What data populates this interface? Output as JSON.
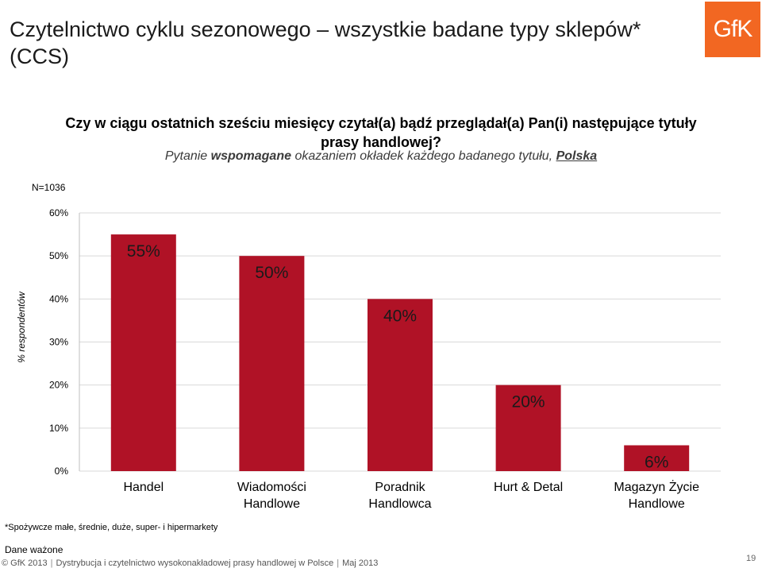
{
  "title_line1": "Czytelnictwo cyklu sezonowego – wszystkie badane typy sklepów*",
  "title_line2": "(CCS)",
  "logo_text": "GfK",
  "question_line1": "Czy w ciągu ostatnich sześciu miesięcy czytał(a) bądź przeglądał(a) Pan(i) następujące tytuły",
  "question_line2": "prasy handlowej?",
  "subq_part1": "Pytanie ",
  "subq_bold": "wspomagane",
  "subq_part2": " okazaniem okładek każdego badanego tytułu, ",
  "subq_country": "Polska",
  "n_value": "N=1036",
  "footnote": "*Spożywcze małe, średnie, duże, super- i hipermarkety",
  "weighted_note": "Dane ważone",
  "footer": {
    "copyright": "© GfK 2013",
    "study": "Dystrybucja i czytelnictwo wysokonakładowej prasy handlowej w Polsce",
    "date": "Maj 2013"
  },
  "page_number": "19",
  "colors": {
    "bar": "#b01226",
    "gfk_orange": "#f26722"
  },
  "chart_data": {
    "type": "bar",
    "ylabel": "% respondentów",
    "ylim": [
      0,
      60
    ],
    "yticks": [
      "0%",
      "10%",
      "20%",
      "30%",
      "40%",
      "50%",
      "60%"
    ],
    "grid": true,
    "categories": [
      [
        "Handel"
      ],
      [
        "Wiadomości",
        "Handlowe"
      ],
      [
        "Poradnik",
        "Handlowca"
      ],
      [
        "Hurt & Detal"
      ],
      [
        "Magazyn Życie",
        "Handlowe"
      ]
    ],
    "values": [
      55,
      50,
      40,
      20,
      6
    ],
    "data_labels": [
      "55%",
      "50%",
      "40%",
      "20%",
      "6%"
    ]
  }
}
